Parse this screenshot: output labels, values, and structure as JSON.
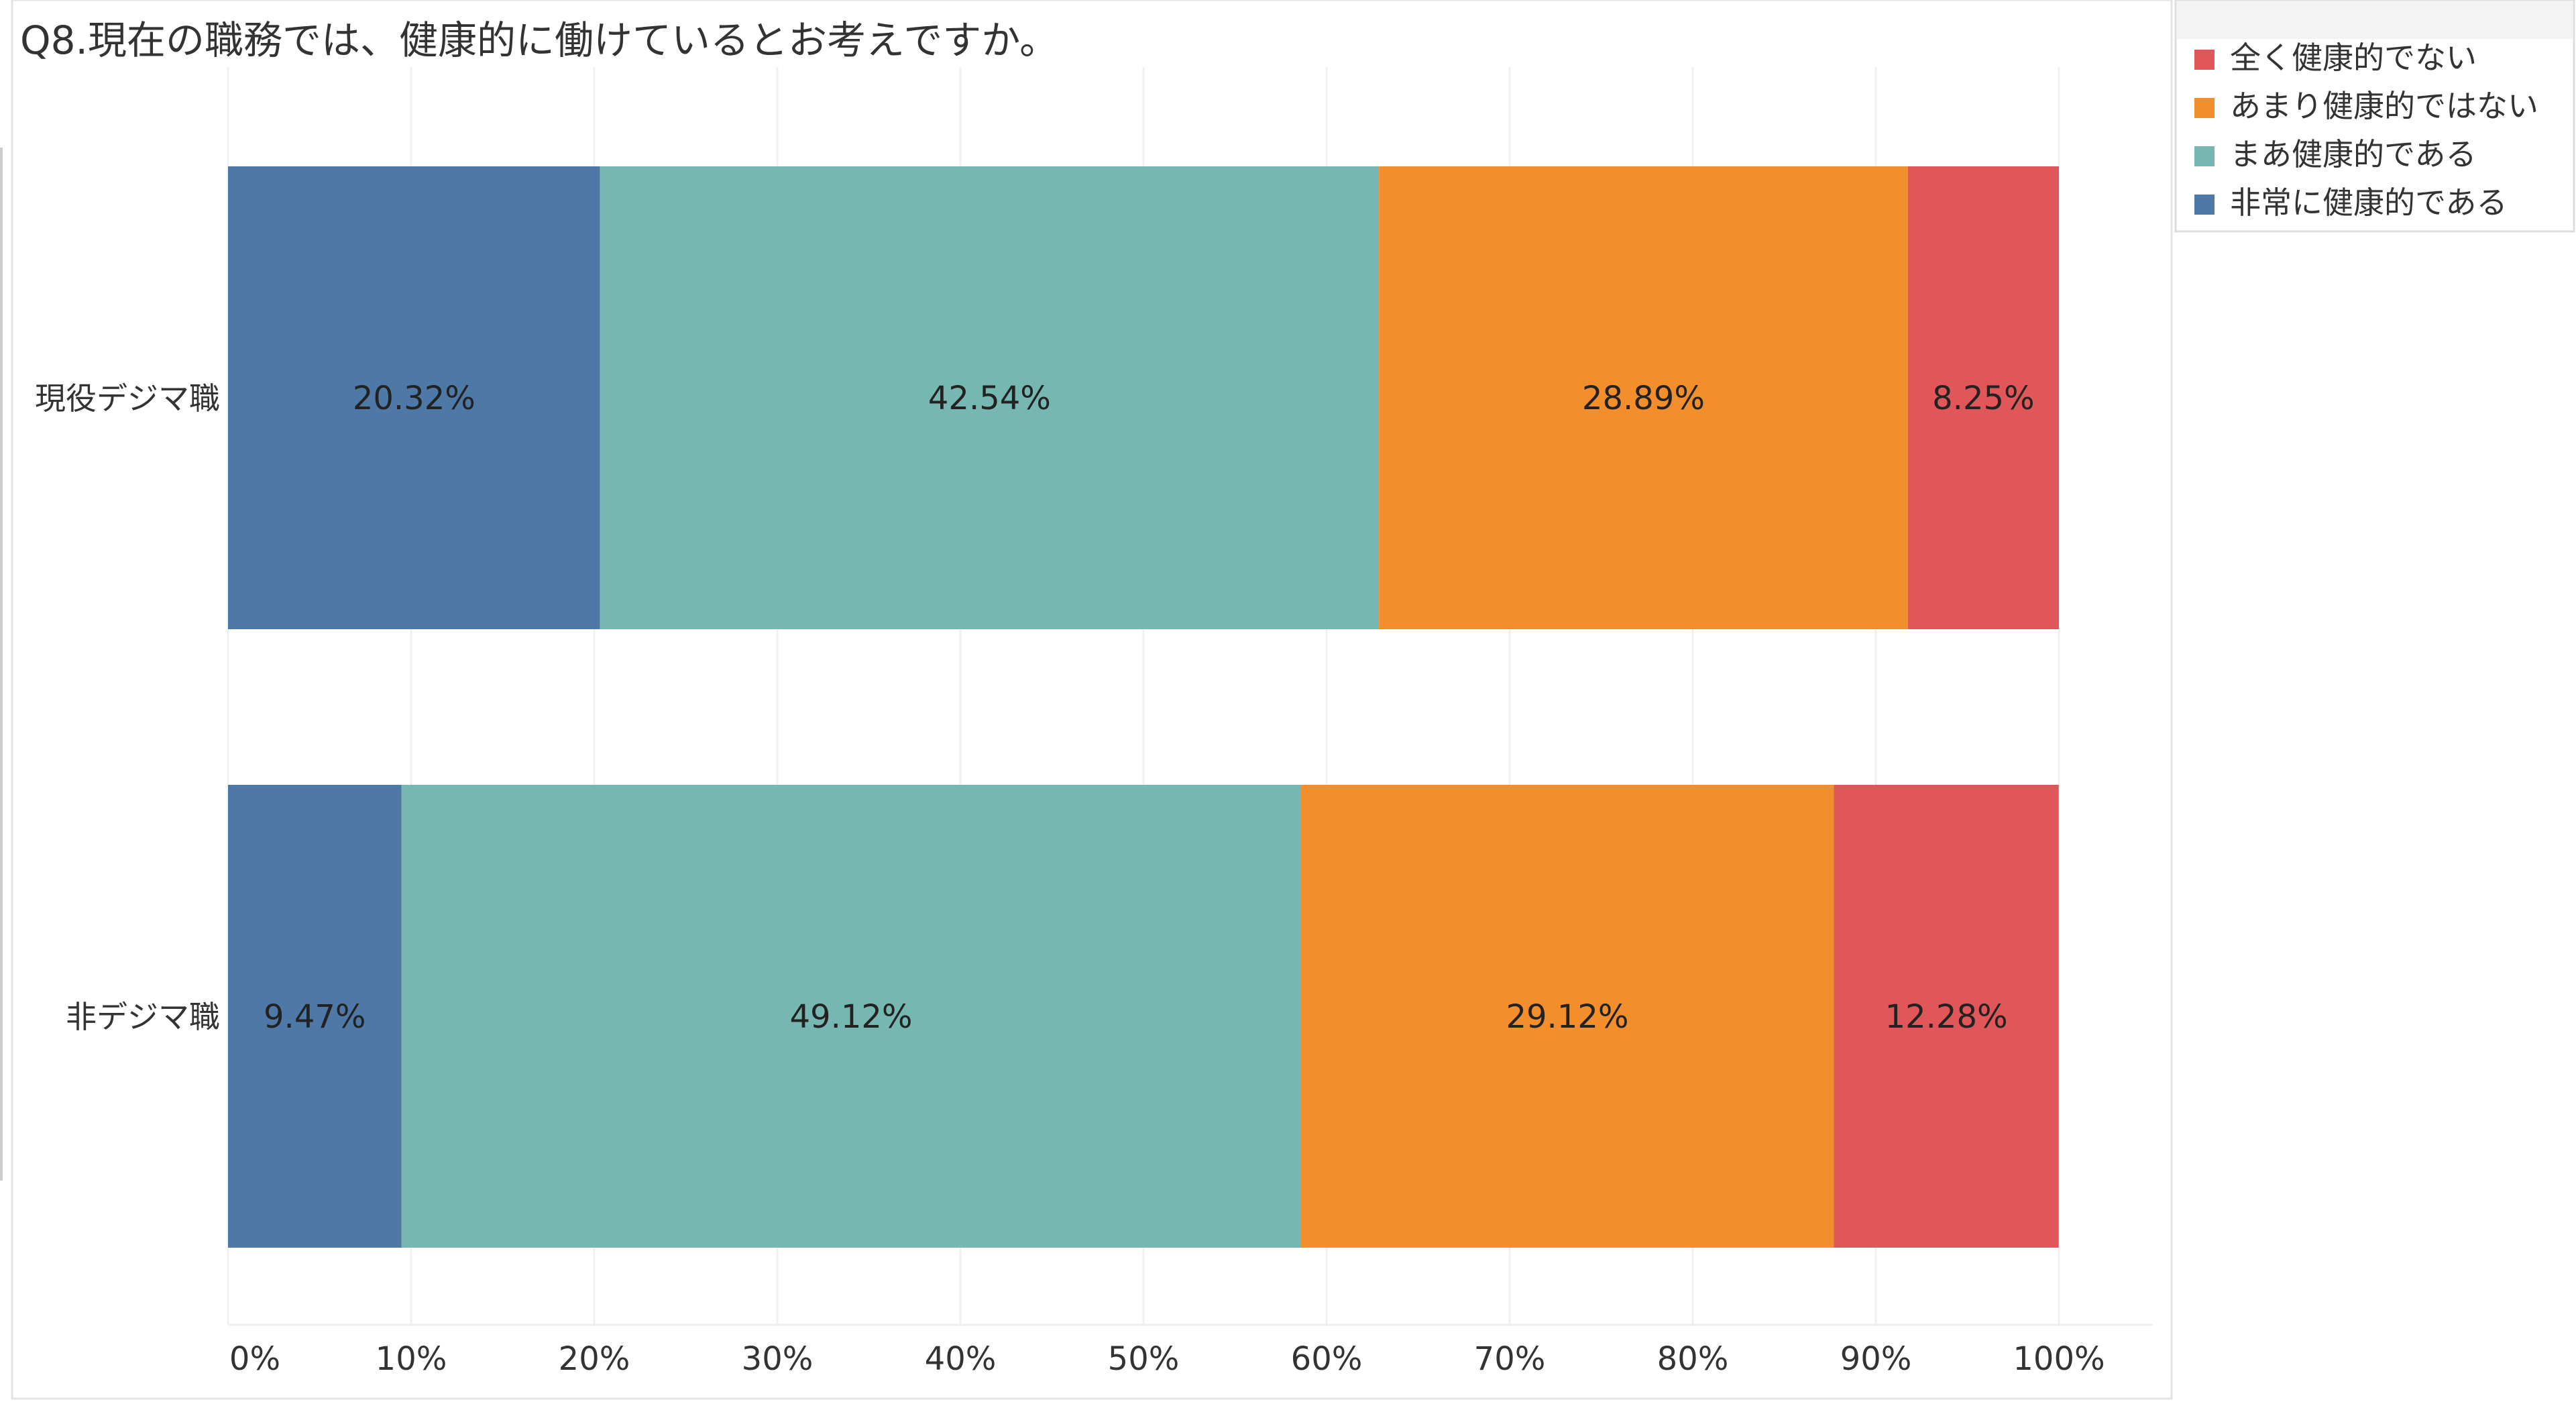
{
  "chart_data": {
    "type": "bar",
    "orientation": "horizontal",
    "stacked": true,
    "normalized": true,
    "title": "Q8.現在の職務では、健康的に働けているとお考えですか。",
    "categories": [
      "現役デジマ職",
      "非デジマ職"
    ],
    "series": [
      {
        "name": "非常に健康的である",
        "values": [
          20.32,
          9.47
        ],
        "color": "#4e79a7",
        "labels": [
          "20.32%",
          "9.47%"
        ]
      },
      {
        "name": "まあ健康的である",
        "values": [
          42.54,
          49.12
        ],
        "color": "#76b7b2",
        "labels": [
          "42.54%",
          "49.12%"
        ]
      },
      {
        "name": "あまり健康的ではない",
        "values": [
          28.89,
          29.12
        ],
        "color": "#f28e2b",
        "labels": [
          "28.89%",
          "29.12%"
        ]
      },
      {
        "name": "全く健康的でない",
        "values": [
          8.25,
          12.28
        ],
        "color": "#e15759",
        "labels": [
          "8.25%",
          "12.28%"
        ]
      }
    ],
    "legend": {
      "position": "right",
      "order": [
        "全く健康的でない",
        "あまり健康的ではない",
        "まあ健康的である",
        "非常に健康的である"
      ]
    },
    "xlim": [
      0,
      100
    ],
    "xticks": [
      "0%",
      "10%",
      "20%",
      "30%",
      "40%",
      "50%",
      "60%",
      "70%",
      "80%",
      "90%",
      "100%"
    ],
    "grid": true,
    "xlabel": "",
    "ylabel": ""
  }
}
